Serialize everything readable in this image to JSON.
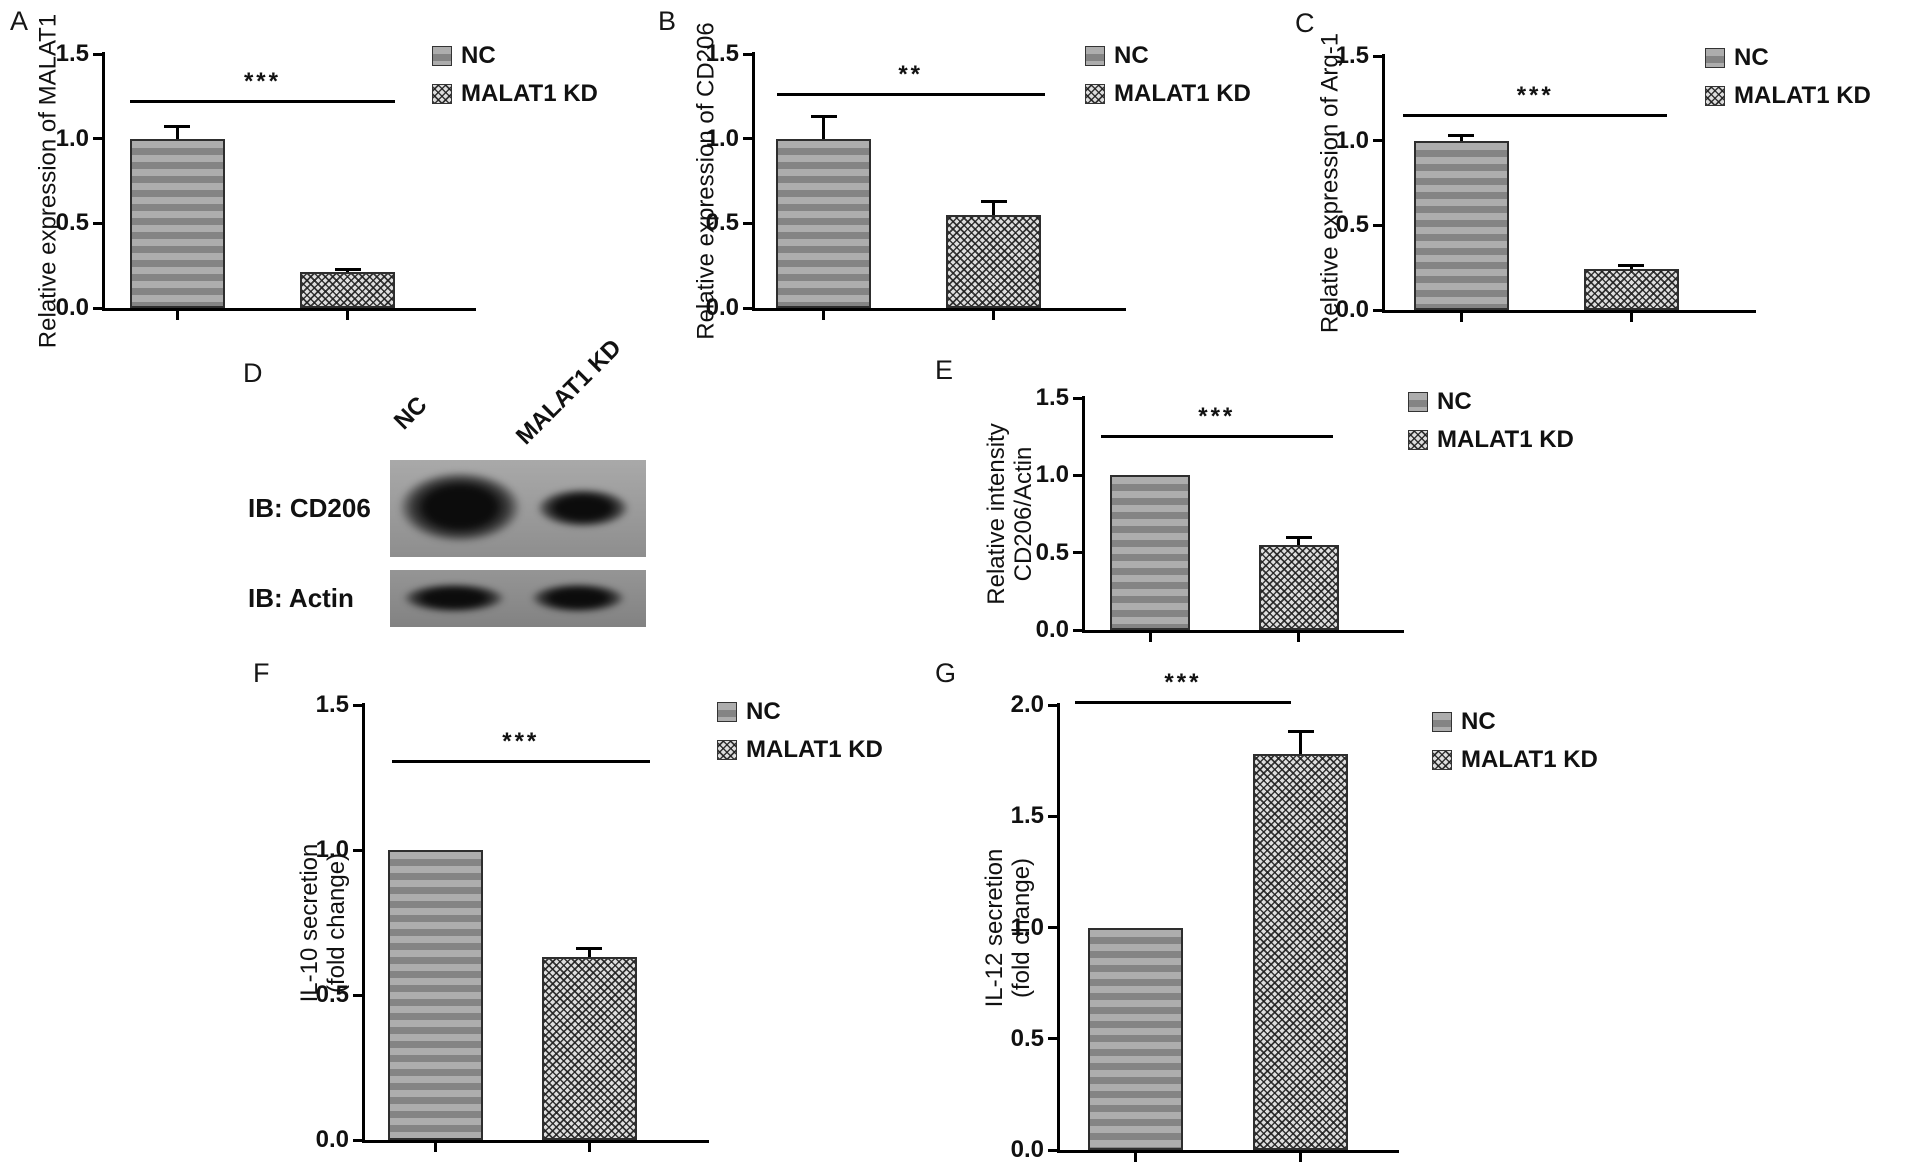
{
  "chart_data": [
    {
      "panel": "A",
      "type": "bar",
      "ylabel": "Relative expression of MALAT1",
      "ylabel_lines": [
        "Relative expression of MALAT1"
      ],
      "categories": [
        "NC",
        "MALAT1 KD"
      ],
      "values": [
        1.0,
        0.21
      ],
      "errors": [
        0.07,
        0.02
      ],
      "ylim": [
        0,
        1.5
      ],
      "yticks": [
        "0.0",
        "0.5",
        "1.0",
        "1.5"
      ],
      "significance": "***",
      "legend": [
        "NC",
        "MALAT1 KD"
      ],
      "legend_position": "right-top",
      "grid": false
    },
    {
      "panel": "B",
      "type": "bar",
      "ylabel": "Relative expression of CD206",
      "ylabel_lines": [
        "Relative expression of CD206"
      ],
      "categories": [
        "NC",
        "MALAT1 KD"
      ],
      "values": [
        1.0,
        0.55
      ],
      "errors": [
        0.13,
        0.08
      ],
      "ylim": [
        0,
        1.5
      ],
      "yticks": [
        "0.0",
        "0.5",
        "1.0",
        "1.5"
      ],
      "significance": "**",
      "legend": [
        "NC",
        "MALAT1 KD"
      ],
      "legend_position": "right-top",
      "grid": false
    },
    {
      "panel": "C",
      "type": "bar",
      "ylabel": "Relative expression of Arg-1",
      "ylabel_lines": [
        "Relative expression of Arg-1"
      ],
      "categories": [
        "NC",
        "MALAT1 KD"
      ],
      "values": [
        1.0,
        0.24
      ],
      "errors": [
        0.03,
        0.02
      ],
      "ylim": [
        0,
        1.5
      ],
      "yticks": [
        "0.0",
        "0.5",
        "1.0",
        "1.5"
      ],
      "significance": "***",
      "legend": [
        "NC",
        "MALAT1 KD"
      ],
      "legend_position": "right-top",
      "grid": false
    },
    {
      "panel": "E",
      "type": "bar",
      "ylabel": "Relative intensity CD206/Actin",
      "ylabel_lines": [
        "Relative intensity",
        "CD206/Actin"
      ],
      "categories": [
        "NC",
        "MALAT1 KD"
      ],
      "values": [
        1.0,
        0.55
      ],
      "errors": [
        0,
        0.05
      ],
      "ylim": [
        0,
        1.5
      ],
      "yticks": [
        "0.0",
        "0.5",
        "1.0",
        "1.5"
      ],
      "significance": "***",
      "legend": [
        "NC",
        "MALAT1 KD"
      ],
      "legend_position": "right-top",
      "grid": false
    },
    {
      "panel": "F",
      "type": "bar",
      "ylabel": "IL-10 secretion (fold change)",
      "ylabel_lines": [
        "IL-10 secretion",
        "(fold change)"
      ],
      "categories": [
        "NC",
        "MALAT1 KD"
      ],
      "values": [
        1.0,
        0.63
      ],
      "errors": [
        0,
        0.03
      ],
      "ylim": [
        0,
        1.5
      ],
      "yticks": [
        "0.0",
        "0.5",
        "1.0",
        "1.5"
      ],
      "significance": "***",
      "legend": [
        "NC",
        "MALAT1 KD"
      ],
      "legend_position": "right-top",
      "grid": false
    },
    {
      "panel": "G",
      "type": "bar",
      "ylabel": "IL-12 secretion (fold change)",
      "ylabel_lines": [
        "IL-12 secretion",
        "(fold change)"
      ],
      "categories": [
        "NC",
        "MALAT1 KD"
      ],
      "values": [
        1.0,
        1.78
      ],
      "errors": [
        0,
        0.1
      ],
      "ylim": [
        0,
        2.0
      ],
      "yticks": [
        "0.0",
        "0.5",
        "1.0",
        "1.5",
        "2.0"
      ],
      "significance": "***",
      "legend": [
        "NC",
        "MALAT1 KD"
      ],
      "legend_position": "right-top",
      "grid": false
    }
  ],
  "blot": {
    "panel": "D",
    "lanes": [
      "NC",
      "MALAT1 KD"
    ],
    "rows": [
      {
        "label": "IB: CD206"
      },
      {
        "label": "IB: Actin"
      }
    ]
  }
}
